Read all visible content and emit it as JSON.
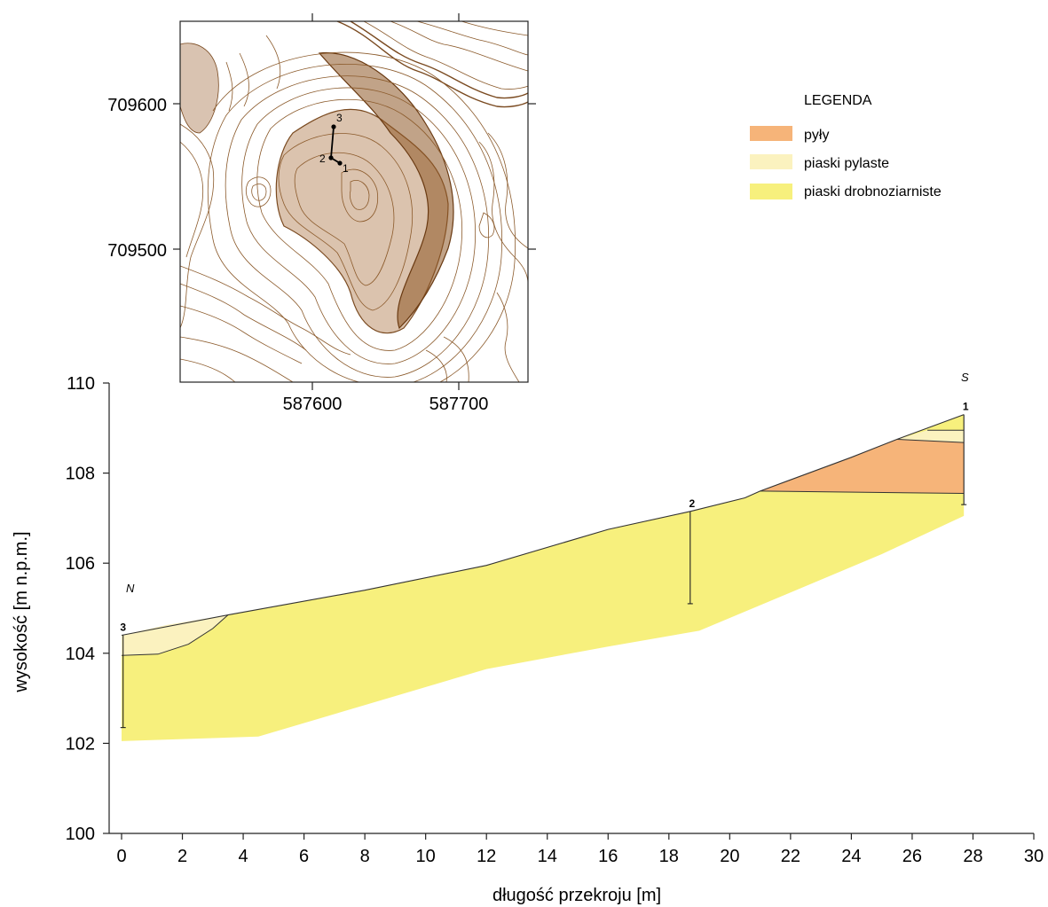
{
  "map": {
    "y_ticks": [
      "709600",
      "709500"
    ],
    "x_ticks": [
      "587600",
      "587700"
    ],
    "points": [
      "3",
      "2",
      "1"
    ]
  },
  "legend": {
    "title": "LEGENDA",
    "items": [
      {
        "label": "pyły",
        "color": "#f6b479"
      },
      {
        "label": "piaski pylaste",
        "color": "#fbf2bf"
      },
      {
        "label": "piaski drobnoziarniste",
        "color": "#f7f07d"
      }
    ]
  },
  "chart_data": {
    "type": "area",
    "xlabel": "długość przekroju [m]",
    "ylabel": "wysokość [m n.p.m.]",
    "xlim": [
      0,
      30
    ],
    "ylim": [
      100,
      110
    ],
    "x_ticks": [
      0,
      2,
      4,
      6,
      8,
      10,
      12,
      14,
      16,
      18,
      20,
      22,
      24,
      26,
      28,
      30
    ],
    "y_ticks": [
      100,
      102,
      104,
      106,
      108,
      110
    ],
    "directions": {
      "left": "N",
      "right": "S"
    },
    "ground_surface": {
      "x": [
        0,
        3.5,
        8,
        12,
        16,
        18.7,
        20.5,
        21,
        24,
        25.5,
        27.7
      ],
      "y": [
        104.4,
        104.85,
        105.4,
        105.95,
        106.75,
        107.15,
        107.45,
        107.6,
        108.35,
        108.75,
        109.3
      ]
    },
    "base_of_section": {
      "x": [
        0,
        4.5,
        8,
        12,
        16,
        19,
        22,
        25,
        27.7
      ],
      "y": [
        102.05,
        102.15,
        102.85,
        103.65,
        104.15,
        104.5,
        105.35,
        106.2,
        107.05
      ]
    },
    "boreholes": [
      {
        "label": "1",
        "x": 27.7,
        "top": 109.3,
        "bottom": 107.3
      },
      {
        "label": "2",
        "x": 18.7,
        "top": 107.15,
        "bottom": 105.1
      },
      {
        "label": "3",
        "x": 0.05,
        "top": 104.4,
        "bottom": 102.35
      }
    ]
  }
}
